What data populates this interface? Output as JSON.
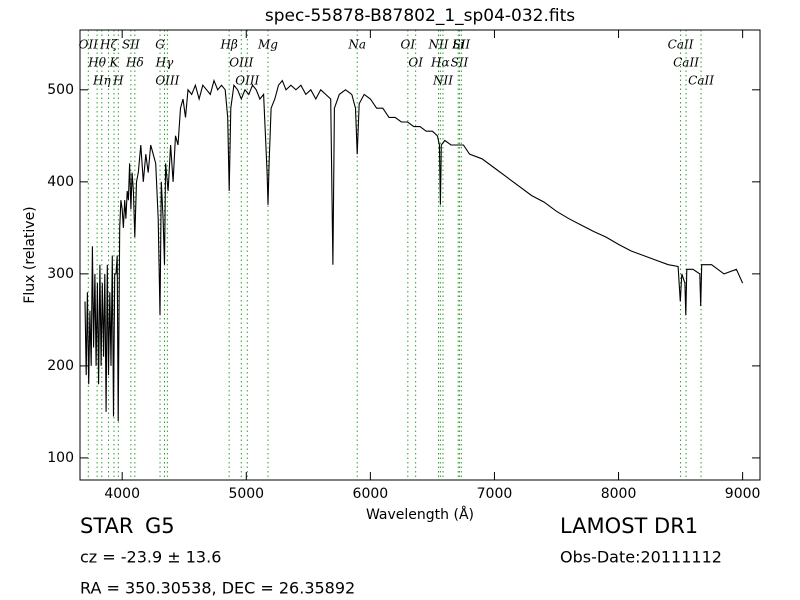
{
  "chart_data": {
    "type": "line",
    "title": "spec-55878-B87802_1_sp04-032.fits",
    "x_label": "Wavelength (Å)",
    "y_label": "Flux (relative)",
    "xlim": [
      3660,
      9140
    ],
    "ylim": [
      76,
      565
    ],
    "xticks": [
      4000,
      5000,
      6000,
      7000,
      8000,
      9000
    ],
    "yticks": [
      100,
      200,
      300,
      400,
      500
    ],
    "color": "#000000",
    "line_color": "#2ca02c",
    "x": [
      3700,
      3710,
      3720,
      3730,
      3740,
      3750,
      3760,
      3770,
      3780,
      3790,
      3800,
      3810,
      3820,
      3830,
      3840,
      3850,
      3860,
      3870,
      3880,
      3890,
      3900,
      3910,
      3920,
      3930,
      3940,
      3950,
      3960,
      3968,
      3980,
      3990,
      4000,
      4010,
      4020,
      4030,
      4040,
      4050,
      4060,
      4070,
      4080,
      4090,
      4102,
      4115,
      4130,
      4150,
      4170,
      4190,
      4210,
      4230,
      4250,
      4270,
      4290,
      4305,
      4315,
      4330,
      4341,
      4350,
      4370,
      4390,
      4410,
      4430,
      4450,
      4470,
      4490,
      4510,
      4530,
      4560,
      4590,
      4620,
      4650,
      4680,
      4710,
      4740,
      4770,
      4800,
      4830,
      4850,
      4862,
      4875,
      4900,
      4930,
      4960,
      4990,
      5020,
      5050,
      5080,
      5110,
      5140,
      5168,
      5175,
      5184,
      5200,
      5230,
      5260,
      5290,
      5320,
      5360,
      5400,
      5440,
      5480,
      5520,
      5560,
      5600,
      5640,
      5680,
      5698,
      5710,
      5750,
      5800,
      5850,
      5880,
      5894,
      5910,
      5950,
      6000,
      6050,
      6100,
      6150,
      6200,
      6250,
      6300,
      6350,
      6400,
      6450,
      6500,
      6540,
      6556,
      6564,
      6572,
      6600,
      6650,
      6700,
      6750,
      6800,
      6900,
      7000,
      7100,
      7200,
      7300,
      7400,
      7500,
      7600,
      7700,
      7800,
      7900,
      8000,
      8100,
      8200,
      8300,
      8400,
      8480,
      8498,
      8510,
      8535,
      8542,
      8550,
      8600,
      8655,
      8662,
      8670,
      8750,
      8850,
      8950,
      9000
    ],
    "values": [
      270,
      190,
      280,
      180,
      260,
      200,
      330,
      220,
      300,
      200,
      290,
      180,
      310,
      200,
      290,
      210,
      300,
      150,
      310,
      190,
      280,
      200,
      320,
      145,
      300,
      300,
      320,
      140,
      350,
      380,
      370,
      350,
      380,
      360,
      390,
      380,
      420,
      370,
      410,
      390,
      340,
      400,
      410,
      440,
      400,
      430,
      410,
      440,
      430,
      420,
      360,
      255,
      400,
      360,
      310,
      420,
      390,
      440,
      400,
      450,
      440,
      480,
      490,
      470,
      500,
      495,
      505,
      490,
      505,
      500,
      495,
      510,
      500,
      505,
      500,
      470,
      390,
      480,
      505,
      500,
      490,
      500,
      495,
      505,
      500,
      490,
      495,
      410,
      375,
      420,
      480,
      490,
      505,
      510,
      500,
      505,
      500,
      505,
      495,
      500,
      490,
      500,
      495,
      490,
      310,
      480,
      495,
      500,
      495,
      480,
      430,
      485,
      495,
      490,
      480,
      480,
      470,
      470,
      465,
      465,
      460,
      460,
      455,
      455,
      450,
      440,
      375,
      440,
      445,
      440,
      440,
      440,
      430,
      425,
      415,
      405,
      395,
      385,
      378,
      368,
      360,
      353,
      346,
      340,
      332,
      325,
      320,
      315,
      310,
      308,
      270,
      300,
      290,
      255,
      305,
      305,
      300,
      265,
      310,
      310,
      300,
      305,
      290
    ],
    "lines": [
      {
        "name": "OII",
        "x": 3727
      },
      {
        "name": "Hθ",
        "x": 3798
      },
      {
        "name": "Hη",
        "x": 3836
      },
      {
        "name": "Hζ",
        "x": 3890
      },
      {
        "name": "K",
        "x": 3934
      },
      {
        "name": "H",
        "x": 3969
      },
      {
        "name": "SII",
        "x": 4070
      },
      {
        "name": "Hδ",
        "x": 4102
      },
      {
        "name": "G",
        "x": 4305
      },
      {
        "name": "Hγ",
        "x": 4341
      },
      {
        "name": "OIII",
        "x": 4364
      },
      {
        "name": "Hβ",
        "x": 4862
      },
      {
        "name": "OIII",
        "x": 4960
      },
      {
        "name": "OIII",
        "x": 5008
      },
      {
        "name": "Mg",
        "x": 5175
      },
      {
        "name": "Na",
        "x": 5894
      },
      {
        "name": "OI",
        "x": 6302
      },
      {
        "name": "OI",
        "x": 6365
      },
      {
        "name": "NII",
        "x": 6549
      },
      {
        "name": "Hα",
        "x": 6564
      },
      {
        "name": "NII",
        "x": 6585
      },
      {
        "name": "Li",
        "x": 6708
      },
      {
        "name": "SII",
        "x": 6718
      },
      {
        "name": "SII",
        "x": 6733
      },
      {
        "name": "CaII",
        "x": 8500
      },
      {
        "name": "CaII",
        "x": 8544
      },
      {
        "name": "CaII",
        "x": 8665
      }
    ]
  },
  "info": {
    "object_class": "STAR",
    "subclass": "G5",
    "cz": "cz = -23.9 ± 13.6",
    "coords": "RA = 350.30538, DEC = 26.35892",
    "survey": "LAMOST DR1",
    "obs_date": "Obs-Date:20111112"
  }
}
